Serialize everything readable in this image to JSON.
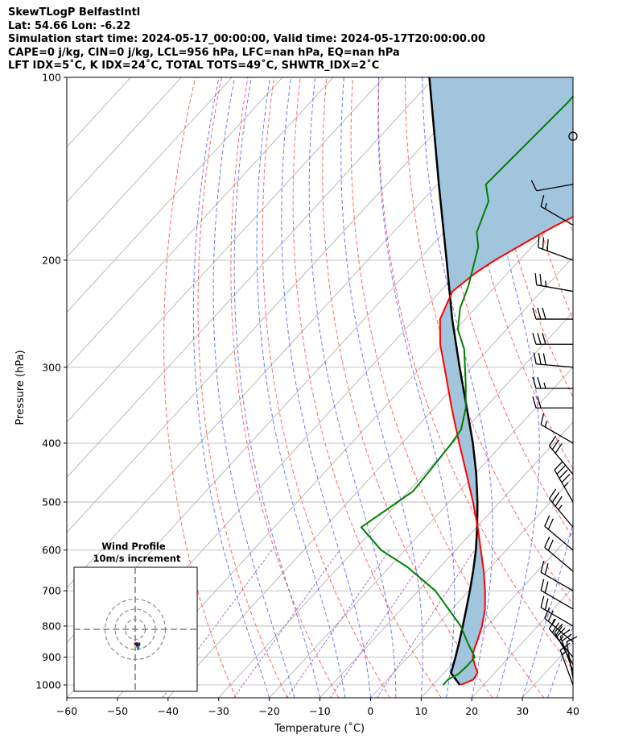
{
  "title_lines": [
    "SkewTLogP BelfastIntl",
    "Lat: 54.66   Lon: -6.22",
    "Simulation start time: 2024-05-17_00:00:00, Valid time: 2024-05-17T20:00:00.00",
    "CAPE=0 j/kg, CIN=0 j/kg, LCL=956 hPa, LFC=nan hPa, EQ=nan hPa",
    "LFT IDX=5˚C, K IDX=24˚C, TOTAL TOTS=49˚C, SHWTR_IDX=2˚C"
  ],
  "colors": {
    "temperature": "#ff0000",
    "dewpoint": "#008000",
    "parcel": "#000000",
    "cape_fill": "#a2c5de",
    "dry_adiabat": "#ff4040",
    "moist_adiabat": "#3a4cff",
    "mixing_ratio": "#9944bb",
    "isotherm": "#aaaaaa"
  },
  "chart_data": {
    "type": "skewt",
    "xlabel": "Temperature (˚C)",
    "ylabel": "Pressure (hPa)",
    "xlim": [
      -60,
      40
    ],
    "ylim": [
      1050,
      100
    ],
    "x_ticks": [
      -60,
      -50,
      -40,
      -30,
      -20,
      -10,
      0,
      10,
      20,
      30,
      40
    ],
    "x_tick_labels": [
      "−60",
      "−50",
      "−40",
      "−30",
      "−20",
      "−10",
      "0",
      "10",
      "20",
      "30",
      "40"
    ],
    "y_ticks": [
      1000,
      900,
      800,
      700,
      600,
      500,
      400,
      300,
      200,
      100
    ],
    "y_tick_labels": [
      "1000",
      "900",
      "800",
      "700",
      "600",
      "500",
      "400",
      "300",
      "200",
      "100"
    ],
    "temperature": {
      "name": "Temperature",
      "p": [
        1000,
        980,
        955,
        925,
        900,
        875,
        850,
        800,
        750,
        700,
        650,
        600,
        550,
        500,
        450,
        400,
        350,
        300,
        275,
        250,
        225,
        210,
        200,
        180,
        175,
        160,
        145,
        130,
        120,
        110,
        100
      ],
      "t": [
        15.5,
        17,
        16.6,
        14.5,
        12.8,
        11.7,
        10.9,
        9.0,
        6.5,
        3.2,
        -0.6,
        -5.0,
        -9.8,
        -15.3,
        -21.6,
        -28.7,
        -36.6,
        -45.4,
        -50.4,
        -55.0,
        -57.6,
        -56.4,
        -54.9,
        -50.4,
        -49.0,
        -44.1,
        -36.8,
        -30.2,
        -24.5,
        -19.8,
        -15.5
      ]
    },
    "dewpoint": {
      "name": "Dewpoint",
      "p": [
        1000,
        980,
        960,
        930,
        900,
        850,
        800,
        700,
        640,
        600,
        550,
        480,
        440,
        400,
        380,
        350,
        320,
        280,
        260,
        240,
        220,
        200,
        190,
        180,
        160,
        150,
        130,
        110,
        100
      ],
      "t": [
        12,
        12,
        13,
        13.3,
        13.2,
        9.0,
        4.8,
        -6.6,
        -16.4,
        -24.7,
        -32.8,
        -29.1,
        -29.6,
        -30.2,
        -30.8,
        -33.8,
        -38.1,
        -44.8,
        -49.6,
        -53.0,
        -55.5,
        -58.8,
        -60.6,
        -63.5,
        -66.8,
        -70.4,
        -69.8,
        -69.1,
        -69.4
      ]
    },
    "parcel": {
      "name": "Parcel profile",
      "p": [
        1000,
        956,
        900,
        850,
        800,
        750,
        700,
        650,
        600,
        550,
        500,
        450,
        400,
        350,
        300,
        250,
        200,
        150,
        100
      ],
      "t": [
        15.3,
        11.4,
        9.4,
        7.4,
        5.2,
        2.8,
        0.2,
        -2.7,
        -6.0,
        -9.9,
        -14.4,
        -19.7,
        -26.0,
        -33.6,
        -42.4,
        -52.6,
        -64.4,
        -79.7,
        -101
      ]
    },
    "cape_fill": true,
    "wind_barbs": {
      "p": [
        125,
        150,
        175,
        200,
        225,
        250,
        275,
        300,
        325,
        350,
        400,
        450,
        500,
        550,
        600,
        650,
        700,
        750,
        800,
        850,
        900,
        925,
        950,
        975,
        1000
      ],
      "speed_kt": [
        0,
        10,
        15,
        30,
        25,
        30,
        30,
        30,
        25,
        20,
        15,
        30,
        45,
        35,
        20,
        20,
        20,
        20,
        20,
        25,
        30,
        25,
        20,
        10,
        15
      ],
      "dir_deg": [
        0,
        260,
        300,
        290,
        280,
        270,
        270,
        275,
        270,
        270,
        300,
        320,
        330,
        320,
        310,
        310,
        300,
        300,
        300,
        310,
        320,
        330,
        340,
        350,
        340
      ]
    },
    "hodograph": {
      "title": "Wind Profile",
      "subtitle": "10m/s increment",
      "rings_ms": [
        10,
        20,
        30
      ]
    }
  }
}
